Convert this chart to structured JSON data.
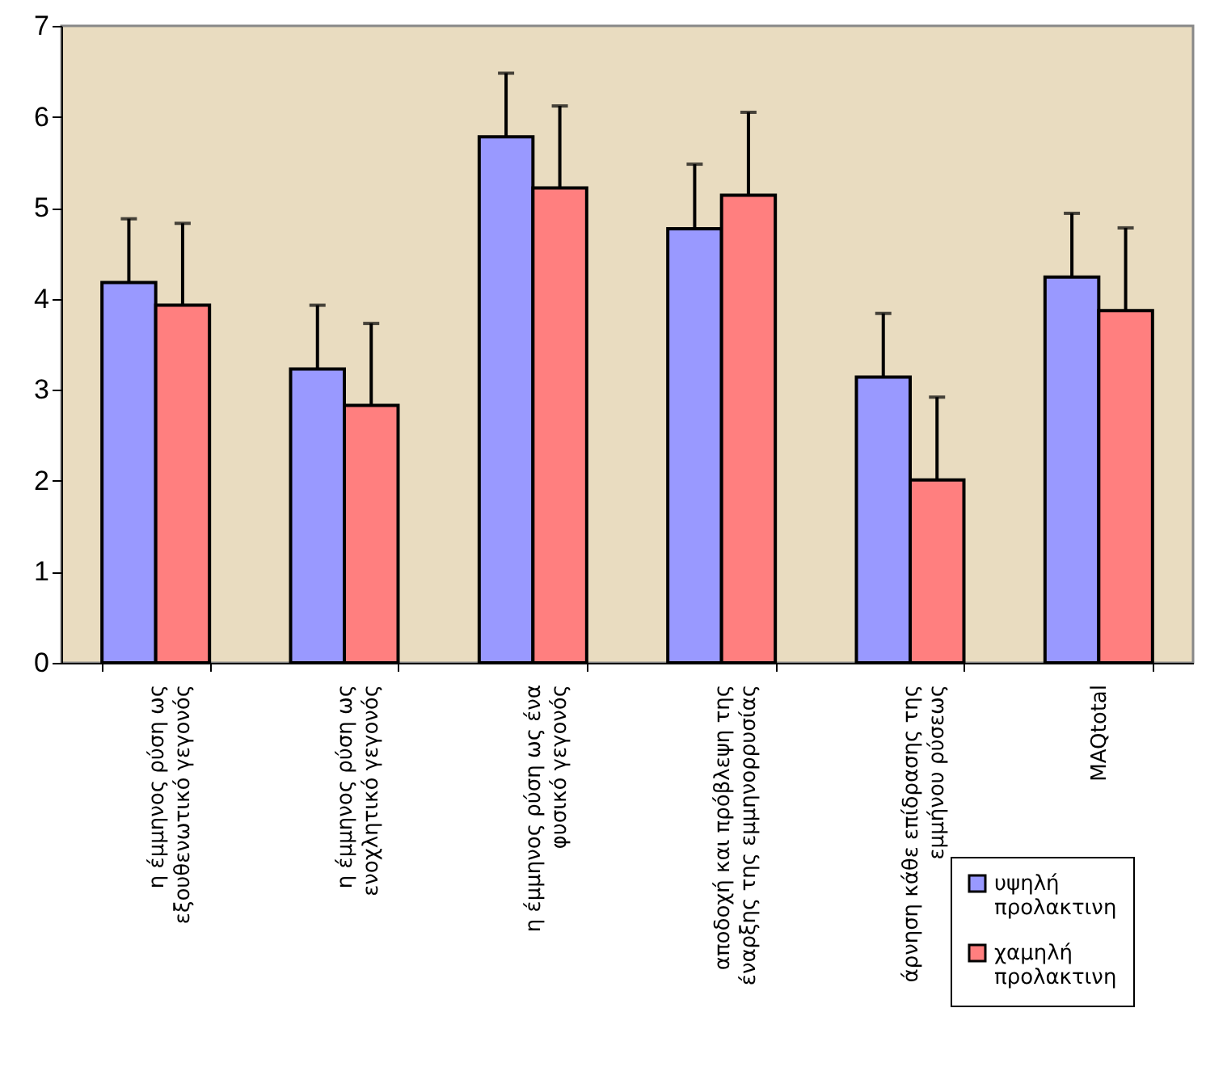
{
  "chart_data": {
    "type": "bar",
    "categories": [
      "η έμμηνος ρύση ως εξουθενωτικό γεγονός",
      "η έμμηνος ρύση ως ενοχλητικό γεγονός",
      "η έμμηνος ρύση ως ένα φυσικό γεγονός",
      "αποδοχή και πρόβλεψη της έναρξης της εμμηνορρυσίας",
      "άρνηση κάθε επίδρασης της εμμήνου ρύσεως",
      "MAQtotal"
    ],
    "series": [
      {
        "name": "υψηλή προλακτινη",
        "color": "#9999ff",
        "values": [
          4.18,
          3.23,
          5.78,
          4.77,
          3.14,
          4.24
        ],
        "errors": [
          [
            4.18,
            4.88
          ],
          [
            3.23,
            3.93
          ],
          [
            5.78,
            6.48
          ],
          [
            4.77,
            5.48
          ],
          [
            3.14,
            3.84
          ],
          [
            4.24,
            4.94
          ]
        ]
      },
      {
        "name": "χαμηλή προλακτινη",
        "color": "#ff7f7f",
        "values": [
          3.93,
          2.83,
          5.22,
          5.14,
          2.01,
          3.87
        ],
        "errors": [
          [
            3.93,
            4.83
          ],
          [
            2.83,
            3.73
          ],
          [
            5.22,
            6.12
          ],
          [
            5.14,
            6.05
          ],
          [
            2.01,
            2.92
          ],
          [
            3.87,
            4.78
          ]
        ]
      }
    ],
    "ylim": [
      0,
      7
    ],
    "yticks": [
      0,
      1,
      2,
      3,
      4,
      5,
      6,
      7
    ],
    "legend": "bottom right"
  }
}
